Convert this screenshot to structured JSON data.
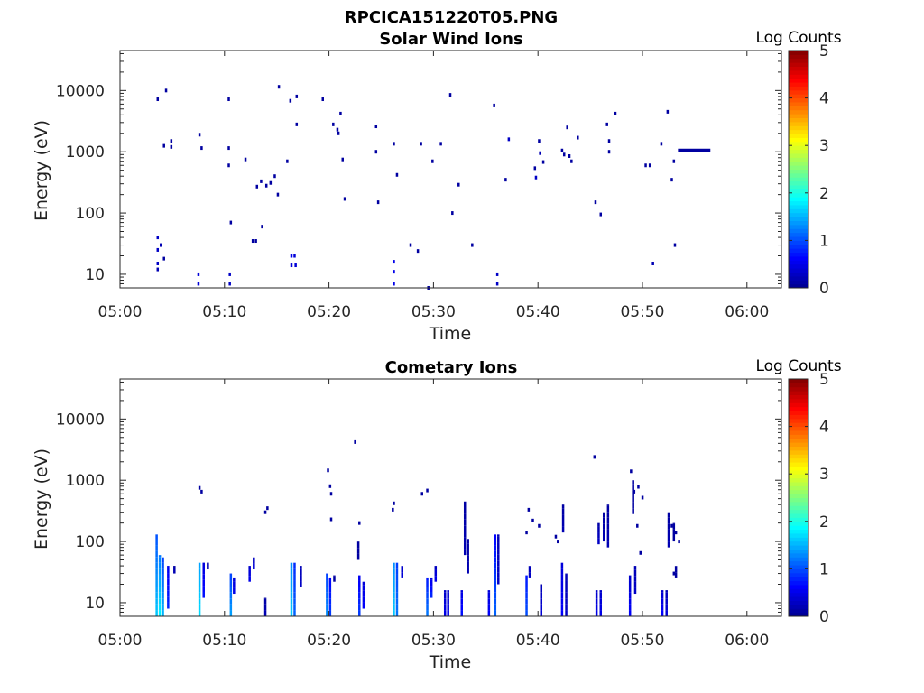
{
  "figure_title": "RPCICA151220T05.PNG",
  "colors": {
    "colormap": [
      "#00008f",
      "#0000ff",
      "#007fff",
      "#00ffff",
      "#7fff7f",
      "#ffff00",
      "#ff7f00",
      "#ff0000",
      "#7f0000"
    ]
  },
  "chart_data": [
    {
      "type": "heatmap",
      "title": "Solar Wind Ions",
      "xlabel": "Time",
      "ylabel": "Energy (eV)",
      "x_ticks": [
        "05:00",
        "05:10",
        "05:20",
        "05:30",
        "05:40",
        "05:50",
        "06:00"
      ],
      "y_ticks": [
        "10",
        "100",
        "1000",
        "10000"
      ],
      "y_scale": "log",
      "xlim_minutes": [
        0,
        63.3
      ],
      "ylim": [
        6,
        45000
      ],
      "colorbar": {
        "label": "Log Counts",
        "ticks": [
          "0",
          "1",
          "2",
          "3",
          "4",
          "5"
        ],
        "range": [
          0,
          5
        ]
      },
      "cells": [
        [
          3.5,
          7200,
          0.1
        ],
        [
          4.3,
          10000,
          0.1
        ],
        [
          4.8,
          1500,
          0.1
        ],
        [
          4.8,
          1200,
          0.1
        ],
        [
          4.1,
          1250,
          0.1
        ],
        [
          3.5,
          40,
          0.3
        ],
        [
          3.5,
          25,
          0.3
        ],
        [
          3.5,
          15,
          0.3
        ],
        [
          3.5,
          12,
          0.2
        ],
        [
          3.8,
          30,
          0.2
        ],
        [
          4.1,
          18,
          0.1
        ],
        [
          7.5,
          1900,
          0.1
        ],
        [
          7.7,
          1150,
          0.1
        ],
        [
          7.4,
          10,
          0.4
        ],
        [
          7.4,
          7,
          0.4
        ],
        [
          10.3,
          7200,
          0.1
        ],
        [
          10.3,
          1150,
          0.1
        ],
        [
          10.3,
          600,
          0.1
        ],
        [
          10.5,
          70,
          0.1
        ],
        [
          10.4,
          10,
          0.3
        ],
        [
          10.4,
          7,
          0.3
        ],
        [
          11.9,
          750,
          0.1
        ],
        [
          13.0,
          270,
          0.1
        ],
        [
          13.4,
          330,
          0.1
        ],
        [
          13.9,
          280,
          0.1
        ],
        [
          14.3,
          310,
          0.1
        ],
        [
          14.7,
          400,
          0.1
        ],
        [
          15.0,
          200,
          0.1
        ],
        [
          13.5,
          60,
          0.1
        ],
        [
          12.6,
          35,
          0.1
        ],
        [
          12.9,
          35,
          0.1
        ],
        [
          15.1,
          11500,
          0.1
        ],
        [
          15.9,
          700,
          0.1
        ],
        [
          16.2,
          6800,
          0.1
        ],
        [
          16.8,
          8000,
          0.1
        ],
        [
          16.8,
          2800,
          0.1
        ],
        [
          16.3,
          20,
          0.5
        ],
        [
          16.3,
          14,
          0.4
        ],
        [
          16.6,
          20,
          0.4
        ],
        [
          16.7,
          14,
          0.4
        ],
        [
          19.3,
          7200,
          0.1
        ],
        [
          20.3,
          2800,
          0.1
        ],
        [
          20.7,
          2300,
          0.1
        ],
        [
          21.0,
          4200,
          0.1
        ],
        [
          20.8,
          2000,
          0.1
        ],
        [
          21.2,
          750,
          0.1
        ],
        [
          21.4,
          170,
          0.1
        ],
        [
          24.4,
          2600,
          0.1
        ],
        [
          24.4,
          1000,
          0.1
        ],
        [
          24.6,
          150,
          0.1
        ],
        [
          26.1,
          16,
          0.5
        ],
        [
          26.1,
          11,
          0.5
        ],
        [
          26.1,
          7,
          0.5
        ],
        [
          26.4,
          420,
          0.1
        ],
        [
          26.1,
          1350,
          0.1
        ],
        [
          27.7,
          30,
          0.1
        ],
        [
          28.4,
          24,
          0.1
        ],
        [
          29.4,
          6,
          0.1
        ],
        [
          28.7,
          1350,
          0.1
        ],
        [
          29.8,
          700,
          0.1
        ],
        [
          30.6,
          1350,
          0.1
        ],
        [
          31.5,
          8500,
          0.1
        ],
        [
          31.7,
          100,
          0.1
        ],
        [
          32.3,
          290,
          0.1
        ],
        [
          33.6,
          30,
          0.1
        ],
        [
          35.7,
          5700,
          0.1
        ],
        [
          36.0,
          10,
          0.3
        ],
        [
          36.0,
          7,
          0.3
        ],
        [
          36.8,
          350,
          0.1
        ],
        [
          37.1,
          1600,
          0.3
        ],
        [
          39.6,
          540,
          0.1
        ],
        [
          39.7,
          380,
          0.3
        ],
        [
          40.0,
          1500,
          0.1
        ],
        [
          40.1,
          950,
          0.2
        ],
        [
          40.4,
          680,
          0.1
        ],
        [
          42.2,
          1050,
          0.1
        ],
        [
          42.4,
          900,
          0.1
        ],
        [
          42.7,
          2500,
          0.1
        ],
        [
          42.9,
          850,
          0.1
        ],
        [
          43.1,
          700,
          0.1
        ],
        [
          43.7,
          1700,
          0.1
        ],
        [
          45.4,
          150,
          0.1
        ],
        [
          45.9,
          95,
          0.1
        ],
        [
          46.5,
          2800,
          0.1
        ],
        [
          46.7,
          1500,
          0.1
        ],
        [
          46.7,
          1000,
          0.1
        ],
        [
          47.3,
          4200,
          0.1
        ],
        [
          50.2,
          600,
          0.1
        ],
        [
          50.6,
          600,
          0.1
        ],
        [
          50.9,
          15,
          0.2
        ],
        [
          51.7,
          1350,
          0.1
        ],
        [
          52.3,
          4500,
          0.1
        ],
        [
          52.9,
          700,
          0.1
        ],
        [
          52.7,
          350,
          0.1
        ],
        [
          53.0,
          30,
          0.1
        ]
      ],
      "segments": [
        [
          53.4,
          56.5,
          1050,
          0.1
        ]
      ]
    },
    {
      "type": "heatmap",
      "title": "Cometary Ions",
      "xlabel": "Time",
      "ylabel": "Energy (eV)",
      "x_ticks": [
        "05:00",
        "05:10",
        "05:20",
        "05:30",
        "05:40",
        "05:50",
        "06:00"
      ],
      "y_ticks": [
        "10",
        "100",
        "1000",
        "10000"
      ],
      "y_scale": "log",
      "xlim_minutes": [
        0,
        63.3
      ],
      "ylim": [
        6,
        45000
      ],
      "colorbar": {
        "label": "Log Counts",
        "ticks": [
          "0",
          "1",
          "2",
          "3",
          "4",
          "5"
        ],
        "range": [
          0,
          5
        ]
      },
      "columns": [
        [
          3.4,
          6,
          130,
          1.0,
          1.6
        ],
        [
          3.7,
          6,
          60,
          1.2,
          1.8
        ],
        [
          4.0,
          6,
          55,
          0.9,
          1.5
        ],
        [
          4.5,
          8,
          40,
          0.5,
          0.8
        ],
        [
          5.1,
          30,
          40,
          0.1,
          0.2
        ],
        [
          7.5,
          6,
          45,
          1.4,
          1.7
        ],
        [
          7.9,
          12,
          45,
          0.4,
          0.7
        ],
        [
          8.3,
          35,
          45,
          0.1,
          0.2
        ],
        [
          10.5,
          6,
          30,
          0.9,
          1.4
        ],
        [
          10.8,
          14,
          25,
          0.4,
          0.5
        ],
        [
          12.3,
          22,
          40,
          0.3,
          0.5
        ],
        [
          12.7,
          35,
          55,
          0.2,
          0.4
        ],
        [
          13.8,
          6,
          12,
          0.1,
          0.2
        ],
        [
          16.3,
          6,
          45,
          1.3,
          1.6
        ],
        [
          16.6,
          6,
          45,
          0.8,
          1.1
        ],
        [
          17.2,
          18,
          40,
          0.2,
          0.3
        ],
        [
          19.7,
          6,
          30,
          0.9,
          1.3
        ],
        [
          20.0,
          6,
          25,
          0.6,
          0.9
        ],
        [
          20.4,
          22,
          28,
          0.1,
          0.1
        ],
        [
          22.8,
          6,
          28,
          0.5,
          0.9
        ],
        [
          23.2,
          8,
          22,
          0.4,
          0.6
        ],
        [
          22.7,
          50,
          100,
          0.1,
          0.1
        ],
        [
          26.1,
          6,
          45,
          1.3,
          1.6
        ],
        [
          26.4,
          6,
          45,
          0.9,
          1.2
        ],
        [
          26.9,
          25,
          40,
          0.3,
          0.4
        ],
        [
          29.3,
          6,
          25,
          0.7,
          1.2
        ],
        [
          29.7,
          12,
          25,
          0.4,
          0.8
        ],
        [
          30.1,
          22,
          40,
          0.2,
          0.5
        ],
        [
          31.0,
          6,
          16,
          0.3,
          0.5
        ],
        [
          31.3,
          6,
          16,
          0.3,
          0.5
        ],
        [
          32.6,
          6,
          16,
          0.4,
          0.7
        ],
        [
          32.9,
          60,
          450,
          0.1,
          0.2
        ],
        [
          33.2,
          30,
          110,
          0.1,
          0.2
        ],
        [
          35.2,
          6,
          16,
          0.4,
          0.6
        ],
        [
          35.8,
          6,
          130,
          0.6,
          1.1
        ],
        [
          36.1,
          20,
          130,
          0.2,
          0.3
        ],
        [
          38.8,
          6,
          28,
          0.7,
          1.0
        ],
        [
          39.1,
          25,
          40,
          0.2,
          0.3
        ],
        [
          40.2,
          6,
          20,
          0.2,
          0.4
        ],
        [
          42.2,
          6,
          45,
          0.4,
          0.6
        ],
        [
          42.6,
          6,
          30,
          0.2,
          0.3
        ],
        [
          42.3,
          140,
          400,
          0.1,
          0.2
        ],
        [
          45.5,
          6,
          16,
          0.3,
          0.5
        ],
        [
          45.9,
          6,
          16,
          0.3,
          0.5
        ],
        [
          45.7,
          90,
          200,
          0.1,
          0.3
        ],
        [
          46.2,
          100,
          300,
          0.1,
          0.2
        ],
        [
          46.6,
          80,
          400,
          0.1,
          0.2
        ],
        [
          48.7,
          6,
          28,
          0.3,
          0.6
        ],
        [
          49.2,
          14,
          40,
          0.2,
          0.3
        ],
        [
          49.0,
          280,
          1000,
          0.1,
          0.1
        ],
        [
          51.8,
          6,
          16,
          0.3,
          0.6
        ],
        [
          52.2,
          6,
          16,
          0.2,
          0.4
        ],
        [
          52.4,
          80,
          300,
          0.1,
          0.2
        ],
        [
          52.9,
          100,
          200,
          0.1,
          0.1
        ],
        [
          53.1,
          25,
          40,
          0.1,
          0.1
        ]
      ],
      "cells": [
        [
          7.5,
          750,
          0.1
        ],
        [
          7.7,
          650,
          0.1
        ],
        [
          14.0,
          350,
          0.1
        ],
        [
          13.8,
          300,
          0.1
        ],
        [
          19.8,
          1450,
          0.1
        ],
        [
          20.0,
          800,
          0.1
        ],
        [
          20.1,
          600,
          0.1
        ],
        [
          20.1,
          230,
          0.1
        ],
        [
          22.4,
          4200,
          0.1
        ],
        [
          22.8,
          200,
          0.1
        ],
        [
          26.1,
          420,
          0.1
        ],
        [
          26.0,
          330,
          0.1
        ],
        [
          28.8,
          600,
          0.1
        ],
        [
          29.3,
          680,
          0.1
        ],
        [
          39.0,
          330,
          0.1
        ],
        [
          39.4,
          220,
          0.1
        ],
        [
          38.8,
          140,
          0.1
        ],
        [
          40.0,
          180,
          0.1
        ],
        [
          41.6,
          120,
          0.1
        ],
        [
          41.8,
          100,
          0.1
        ],
        [
          45.3,
          2400,
          0.1
        ],
        [
          48.8,
          1400,
          0.1
        ],
        [
          49.1,
          650,
          0.1
        ],
        [
          49.5,
          780,
          0.1
        ],
        [
          49.9,
          520,
          0.1
        ],
        [
          49.4,
          180,
          0.1
        ],
        [
          49.7,
          65,
          0.1
        ],
        [
          52.7,
          180,
          0.1
        ],
        [
          53.1,
          140,
          0.1
        ],
        [
          53.4,
          100,
          0.1
        ],
        [
          52.9,
          30,
          0.1
        ]
      ]
    }
  ]
}
